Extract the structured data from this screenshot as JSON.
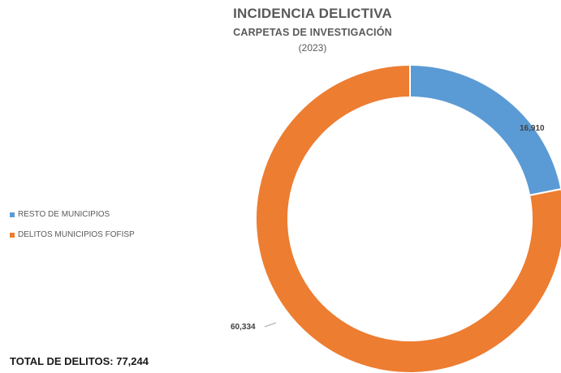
{
  "chart_data": {
    "type": "pie",
    "variant": "donut",
    "title": "INCIDENCIA DELICTIVA",
    "subtitle": "CARPETAS  DE INVESTIGACIÓN",
    "period": "(2023)",
    "slices": [
      {
        "label": "RESTO DE MUNICIPIOS",
        "value": 16910,
        "display": "16,910",
        "color": "#5b9bd5"
      },
      {
        "label": "DELITOS MUNICIPIOS FOFISP",
        "value": 60334,
        "display": "60,334",
        "color": "#ed7d31"
      }
    ],
    "legend_position": "left"
  },
  "footer": {
    "total_text": "TOTAL DE DELITOS: 77,244"
  }
}
